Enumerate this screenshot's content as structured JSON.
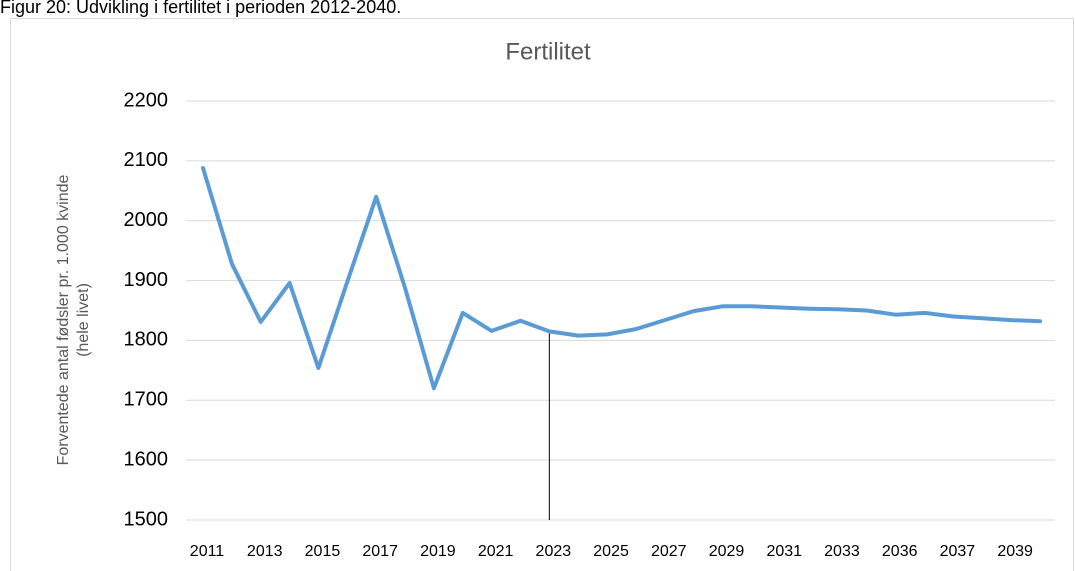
{
  "caption": "Figur 20: Udvikling i fertilitet i perioden 2012-2040.",
  "chart_data": {
    "type": "line",
    "title": "Fertilitet",
    "y_label": [
      "Forventede antal fødsler pr. 1.000 kvinde",
      "(hele livet)"
    ],
    "categories": [
      "2011",
      null,
      "2013",
      null,
      "2015",
      null,
      "2017",
      null,
      "2019",
      null,
      "2021",
      null,
      "2023",
      null,
      "2025",
      null,
      "2027",
      null,
      "2029",
      null,
      "2031",
      null,
      "2033",
      null,
      "2036",
      null,
      "2037",
      null,
      "2039",
      null
    ],
    "series": [
      {
        "name": "Fertilitet",
        "color": "#5b9bd5",
        "values": [
          2088,
          1928,
          1831,
          1896,
          1754,
          1898,
          2040,
          1888,
          1720,
          1846,
          1816,
          1833,
          1815,
          1808,
          1810,
          1819,
          1834,
          1849,
          1857,
          1857,
          1855,
          1853,
          1852,
          1850,
          1843,
          1846,
          1840,
          1837,
          1834,
          1832
        ]
      }
    ],
    "ylim": [
      1500,
      2200
    ],
    "yticks": [
      1500,
      1600,
      1700,
      1800,
      1900,
      2000,
      2100,
      2200
    ],
    "grid": true
  }
}
